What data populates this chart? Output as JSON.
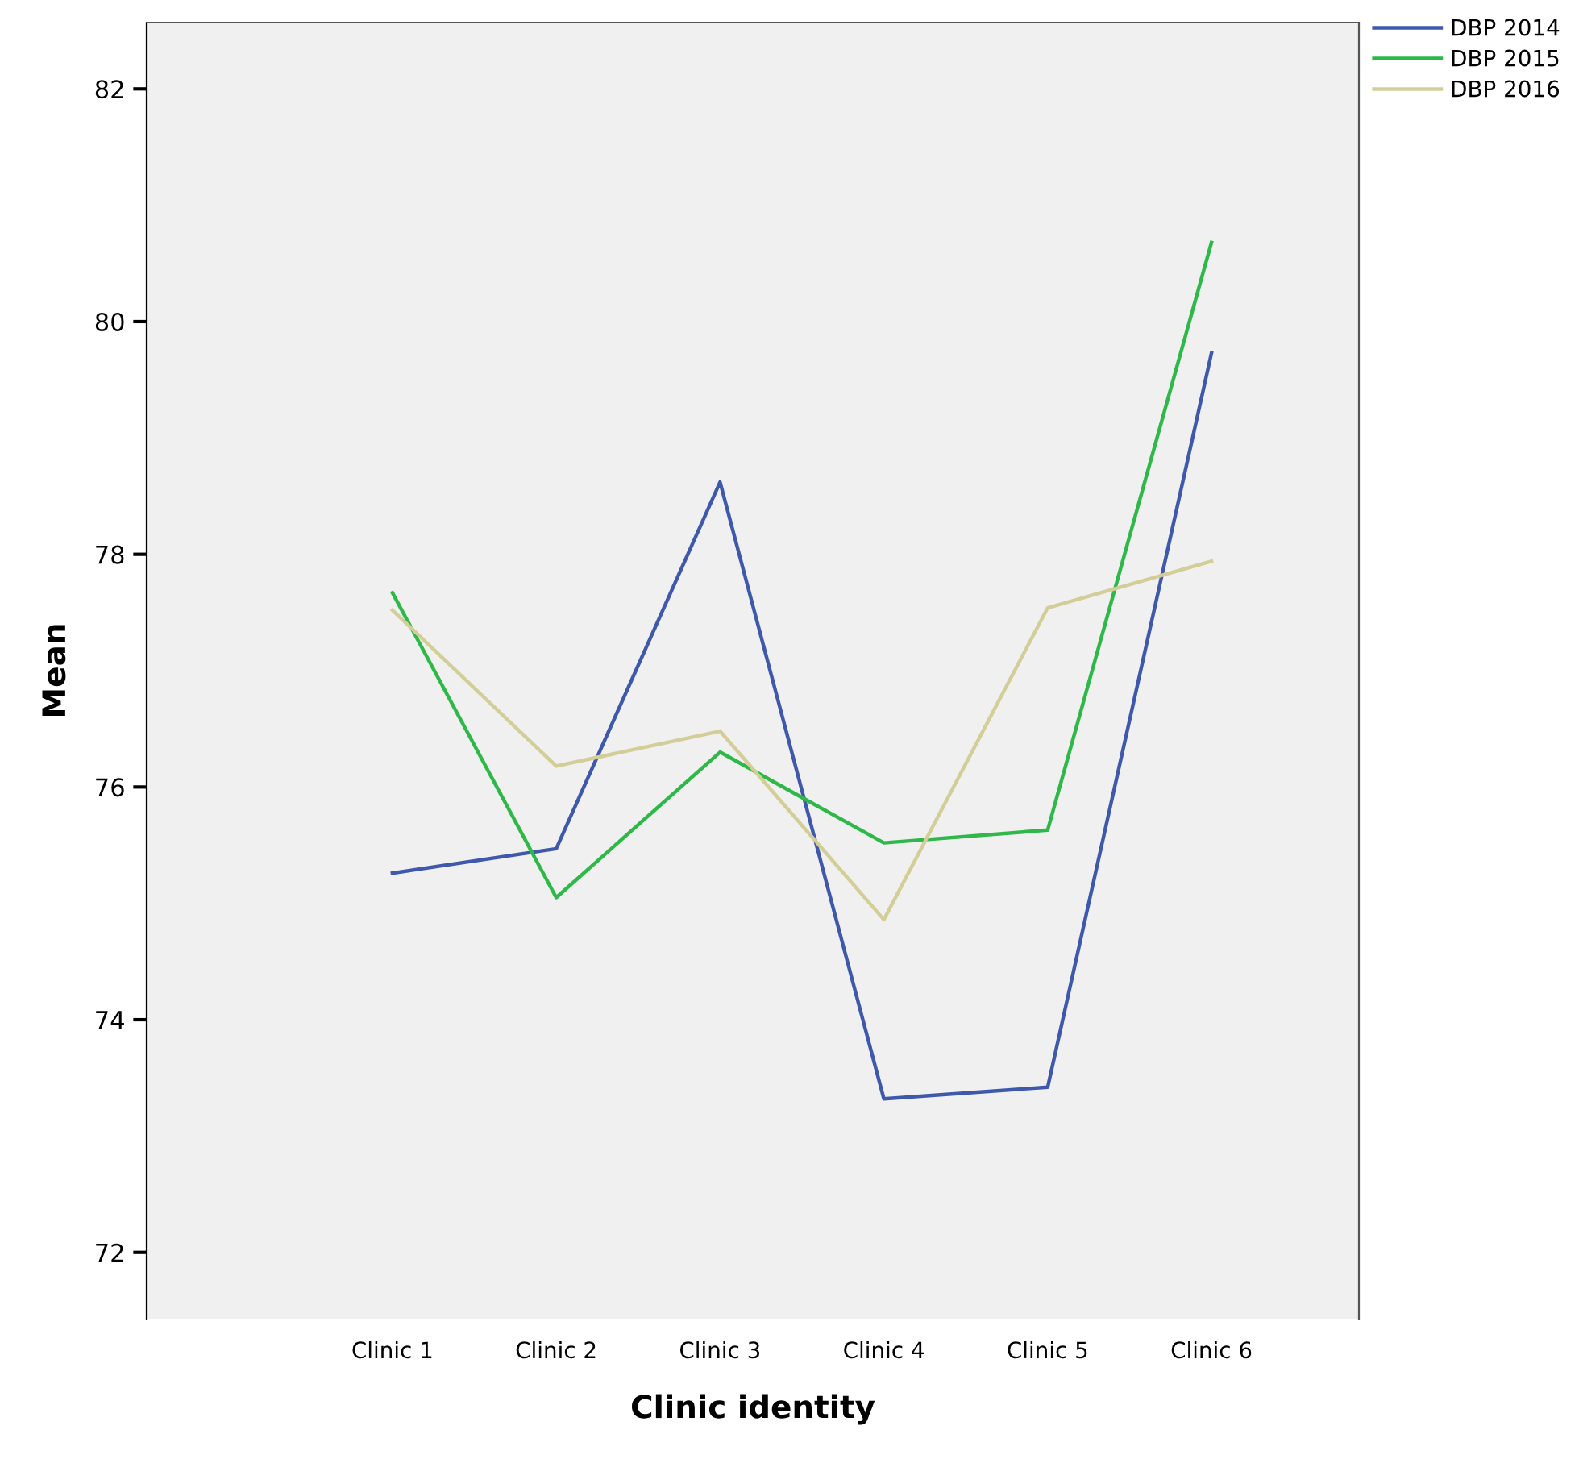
{
  "chart_data": {
    "type": "line",
    "xlabel": "Clinic identity",
    "ylabel": "Mean",
    "categories": [
      "Clinic 1",
      "Clinic 2",
      "Clinic 3",
      "Clinic 4",
      "Clinic 5",
      "Clinic 6"
    ],
    "series": [
      {
        "name": "DBP 2014",
        "color": "#3e58ac",
        "values": [
          75.26,
          75.47,
          78.62,
          73.32,
          73.42,
          79.73
        ]
      },
      {
        "name": "DBP 2015",
        "color": "#2eb848",
        "values": [
          77.67,
          75.05,
          76.3,
          75.52,
          75.63,
          80.68
        ]
      },
      {
        "name": "DBP 2016",
        "color": "#d3ce97",
        "values": [
          77.52,
          76.18,
          76.48,
          74.86,
          77.54,
          77.94
        ]
      }
    ],
    "ylim": [
      71.43,
      82.57
    ],
    "yticks": [
      72,
      74,
      76,
      78,
      80,
      82
    ],
    "grid": false,
    "legend": "top right",
    "marker": "none",
    "line_style": "solid"
  }
}
